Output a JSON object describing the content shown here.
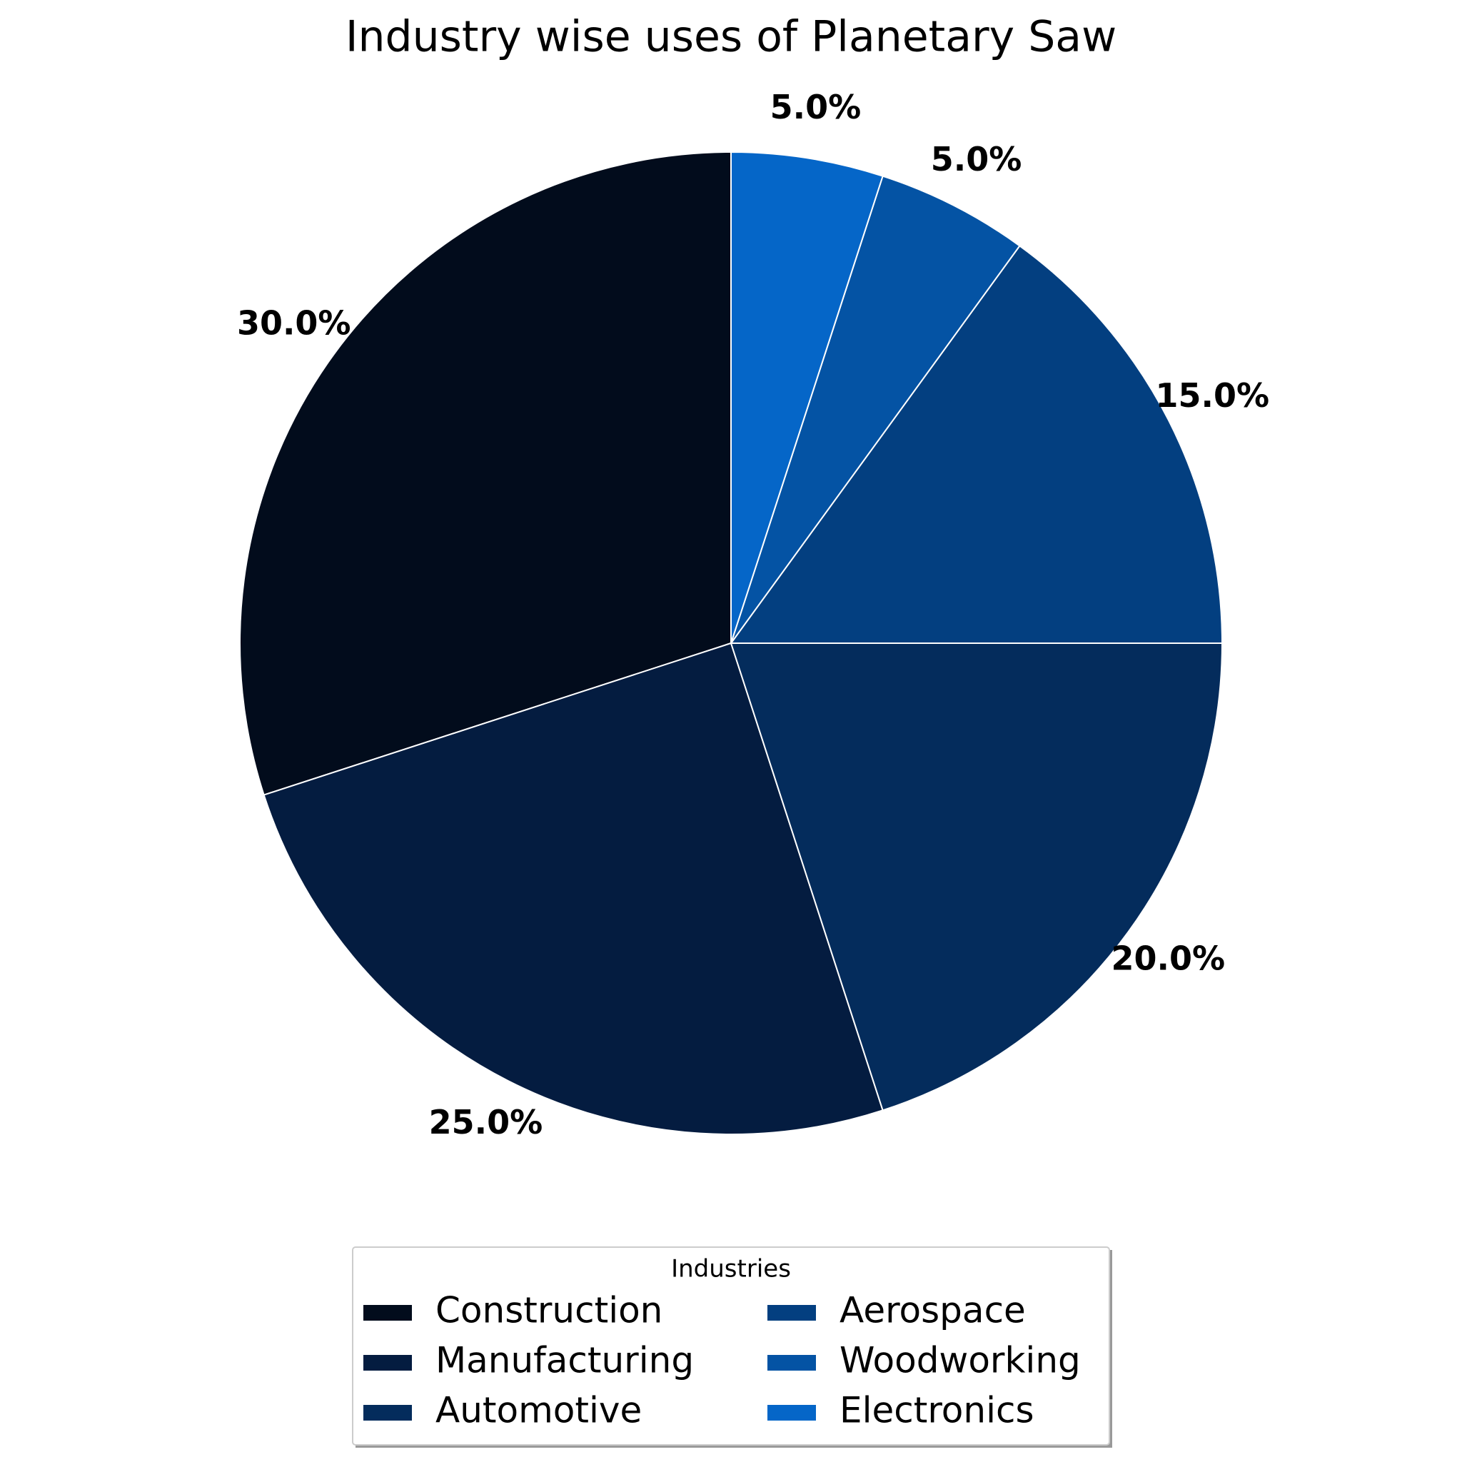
{
  "chart_data": {
    "type": "pie",
    "title": "Industry wise uses of Planetary Saw",
    "categories": [
      "Construction",
      "Manufacturing",
      "Automotive",
      "Aerospace",
      "Woodworking",
      "Electronics"
    ],
    "values": [
      30,
      25,
      20,
      15,
      5,
      5
    ],
    "value_labels": [
      "30.0%",
      "25.0%",
      "20.0%",
      "15.0%",
      "5.0%",
      "5.0%"
    ],
    "colors": [
      "#020c1c",
      "#041c40",
      "#042c5c",
      "#033f80",
      "#0453a4",
      "#0566c8"
    ],
    "legend_title": "Industries",
    "legend": "bottom"
  }
}
